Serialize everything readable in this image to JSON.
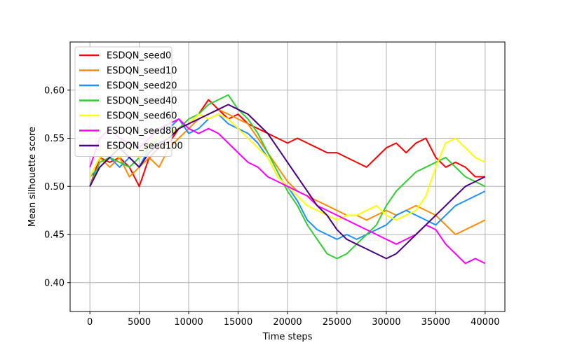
{
  "chart_data": {
    "type": "line",
    "title": "",
    "xlabel": "Time steps",
    "ylabel": "Mean silhouette score",
    "xlim": [
      -2000,
      42000
    ],
    "ylim": [
      0.37,
      0.65
    ],
    "xticks": [
      0,
      5000,
      10000,
      15000,
      20000,
      25000,
      30000,
      35000,
      40000
    ],
    "xtick_labels": [
      "0",
      "5000",
      "10000",
      "15000",
      "20000",
      "25000",
      "30000",
      "35000",
      "40000"
    ],
    "yticks": [
      0.4,
      0.45,
      0.5,
      0.55,
      0.6
    ],
    "ytick_labels": [
      "0.40",
      "0.45",
      "0.50",
      "0.55",
      "0.60"
    ],
    "grid": true,
    "legend_position": "top-left",
    "series": [
      {
        "name": "ESDQN_seed0",
        "color": "#ff0000",
        "points": [
          [
            0,
            0.5
          ],
          [
            1000,
            0.53
          ],
          [
            2000,
            0.525
          ],
          [
            3000,
            0.53
          ],
          [
            4000,
            0.52
          ],
          [
            5000,
            0.5
          ],
          [
            6000,
            0.53
          ],
          [
            7000,
            0.54
          ],
          [
            8000,
            0.545
          ],
          [
            9000,
            0.56
          ],
          [
            10000,
            0.565
          ],
          [
            11000,
            0.575
          ],
          [
            12000,
            0.59
          ],
          [
            13000,
            0.58
          ],
          [
            14000,
            0.57
          ],
          [
            15000,
            0.575
          ],
          [
            16000,
            0.565
          ],
          [
            17000,
            0.56
          ],
          [
            18000,
            0.555
          ],
          [
            19000,
            0.55
          ],
          [
            20000,
            0.545
          ],
          [
            21000,
            0.55
          ],
          [
            22000,
            0.545
          ],
          [
            23000,
            0.54
          ],
          [
            24000,
            0.535
          ],
          [
            25000,
            0.535
          ],
          [
            26000,
            0.53
          ],
          [
            27000,
            0.525
          ],
          [
            28000,
            0.52
          ],
          [
            29000,
            0.53
          ],
          [
            30000,
            0.54
          ],
          [
            31000,
            0.545
          ],
          [
            32000,
            0.535
          ],
          [
            33000,
            0.545
          ],
          [
            34000,
            0.55
          ],
          [
            35000,
            0.53
          ],
          [
            36000,
            0.52
          ],
          [
            37000,
            0.525
          ],
          [
            38000,
            0.52
          ],
          [
            39000,
            0.51
          ],
          [
            40000,
            0.51
          ]
        ]
      },
      {
        "name": "ESDQN_seed10",
        "color": "#ff8c00",
        "points": [
          [
            0,
            0.51
          ],
          [
            1000,
            0.53
          ],
          [
            2000,
            0.52
          ],
          [
            3000,
            0.53
          ],
          [
            4000,
            0.51
          ],
          [
            5000,
            0.52
          ],
          [
            6000,
            0.53
          ],
          [
            7000,
            0.52
          ],
          [
            8000,
            0.54
          ],
          [
            9000,
            0.55
          ],
          [
            10000,
            0.56
          ],
          [
            11000,
            0.57
          ],
          [
            12000,
            0.575
          ],
          [
            13000,
            0.58
          ],
          [
            14000,
            0.575
          ],
          [
            15000,
            0.57
          ],
          [
            16000,
            0.565
          ],
          [
            17000,
            0.55
          ],
          [
            18000,
            0.535
          ],
          [
            19000,
            0.52
          ],
          [
            20000,
            0.505
          ],
          [
            21000,
            0.495
          ],
          [
            22000,
            0.49
          ],
          [
            23000,
            0.485
          ],
          [
            24000,
            0.48
          ],
          [
            25000,
            0.475
          ],
          [
            26000,
            0.47
          ],
          [
            27000,
            0.47
          ],
          [
            28000,
            0.465
          ],
          [
            29000,
            0.47
          ],
          [
            30000,
            0.475
          ],
          [
            31000,
            0.47
          ],
          [
            32000,
            0.475
          ],
          [
            33000,
            0.48
          ],
          [
            34000,
            0.475
          ],
          [
            35000,
            0.47
          ],
          [
            36000,
            0.46
          ],
          [
            37000,
            0.45
          ],
          [
            38000,
            0.455
          ],
          [
            39000,
            0.46
          ],
          [
            40000,
            0.465
          ]
        ]
      },
      {
        "name": "ESDQN_seed20",
        "color": "#1e90ff",
        "points": [
          [
            0,
            0.51
          ],
          [
            1000,
            0.52
          ],
          [
            2000,
            0.53
          ],
          [
            3000,
            0.52
          ],
          [
            4000,
            0.53
          ],
          [
            5000,
            0.52
          ],
          [
            6000,
            0.54
          ],
          [
            7000,
            0.55
          ],
          [
            8000,
            0.56
          ],
          [
            9000,
            0.57
          ],
          [
            10000,
            0.555
          ],
          [
            11000,
            0.56
          ],
          [
            12000,
            0.57
          ],
          [
            13000,
            0.575
          ],
          [
            14000,
            0.565
          ],
          [
            15000,
            0.56
          ],
          [
            16000,
            0.555
          ],
          [
            17000,
            0.545
          ],
          [
            18000,
            0.53
          ],
          [
            19000,
            0.51
          ],
          [
            20000,
            0.5
          ],
          [
            21000,
            0.485
          ],
          [
            22000,
            0.465
          ],
          [
            23000,
            0.455
          ],
          [
            24000,
            0.45
          ],
          [
            25000,
            0.445
          ],
          [
            26000,
            0.45
          ],
          [
            27000,
            0.445
          ],
          [
            28000,
            0.45
          ],
          [
            29000,
            0.455
          ],
          [
            30000,
            0.46
          ],
          [
            31000,
            0.47
          ],
          [
            32000,
            0.475
          ],
          [
            33000,
            0.47
          ],
          [
            34000,
            0.465
          ],
          [
            35000,
            0.46
          ],
          [
            36000,
            0.47
          ],
          [
            37000,
            0.48
          ],
          [
            38000,
            0.485
          ],
          [
            39000,
            0.49
          ],
          [
            40000,
            0.495
          ]
        ]
      },
      {
        "name": "ESDQN_seed40",
        "color": "#32cd32",
        "points": [
          [
            0,
            0.5
          ],
          [
            1000,
            0.525
          ],
          [
            2000,
            0.53
          ],
          [
            3000,
            0.525
          ],
          [
            4000,
            0.52
          ],
          [
            5000,
            0.53
          ],
          [
            6000,
            0.54
          ],
          [
            7000,
            0.55
          ],
          [
            8000,
            0.555
          ],
          [
            9000,
            0.56
          ],
          [
            10000,
            0.57
          ],
          [
            11000,
            0.575
          ],
          [
            12000,
            0.585
          ],
          [
            13000,
            0.59
          ],
          [
            14000,
            0.595
          ],
          [
            15000,
            0.58
          ],
          [
            16000,
            0.57
          ],
          [
            17000,
            0.555
          ],
          [
            18000,
            0.535
          ],
          [
            19000,
            0.515
          ],
          [
            20000,
            0.495
          ],
          [
            21000,
            0.48
          ],
          [
            22000,
            0.46
          ],
          [
            23000,
            0.445
          ],
          [
            24000,
            0.43
          ],
          [
            25000,
            0.425
          ],
          [
            26000,
            0.43
          ],
          [
            27000,
            0.44
          ],
          [
            28000,
            0.45
          ],
          [
            29000,
            0.46
          ],
          [
            30000,
            0.48
          ],
          [
            31000,
            0.495
          ],
          [
            32000,
            0.505
          ],
          [
            33000,
            0.515
          ],
          [
            34000,
            0.52
          ],
          [
            35000,
            0.525
          ],
          [
            36000,
            0.53
          ],
          [
            37000,
            0.52
          ],
          [
            38000,
            0.51
          ],
          [
            39000,
            0.505
          ],
          [
            40000,
            0.5
          ]
        ]
      },
      {
        "name": "ESDQN_seed60",
        "color": "#ffff00",
        "points": [
          [
            0,
            0.51
          ],
          [
            1000,
            0.53
          ],
          [
            2000,
            0.54
          ],
          [
            3000,
            0.53
          ],
          [
            4000,
            0.54
          ],
          [
            5000,
            0.53
          ],
          [
            6000,
            0.545
          ],
          [
            7000,
            0.55
          ],
          [
            8000,
            0.555
          ],
          [
            9000,
            0.56
          ],
          [
            10000,
            0.565
          ],
          [
            11000,
            0.575
          ],
          [
            12000,
            0.57
          ],
          [
            13000,
            0.575
          ],
          [
            14000,
            0.57
          ],
          [
            15000,
            0.56
          ],
          [
            16000,
            0.55
          ],
          [
            17000,
            0.54
          ],
          [
            18000,
            0.53
          ],
          [
            19000,
            0.51
          ],
          [
            20000,
            0.5
          ],
          [
            21000,
            0.49
          ],
          [
            22000,
            0.48
          ],
          [
            23000,
            0.475
          ],
          [
            24000,
            0.47
          ],
          [
            25000,
            0.465
          ],
          [
            26000,
            0.47
          ],
          [
            27000,
            0.47
          ],
          [
            28000,
            0.475
          ],
          [
            29000,
            0.48
          ],
          [
            30000,
            0.47
          ],
          [
            31000,
            0.465
          ],
          [
            32000,
            0.47
          ],
          [
            33000,
            0.475
          ],
          [
            34000,
            0.49
          ],
          [
            35000,
            0.52
          ],
          [
            36000,
            0.545
          ],
          [
            37000,
            0.55
          ],
          [
            38000,
            0.54
          ],
          [
            39000,
            0.53
          ],
          [
            40000,
            0.525
          ]
        ]
      },
      {
        "name": "ESDQN_seed80",
        "color": "#ff00ff",
        "points": [
          [
            0,
            0.52
          ],
          [
            1000,
            0.55
          ],
          [
            2000,
            0.56
          ],
          [
            3000,
            0.55
          ],
          [
            4000,
            0.545
          ],
          [
            5000,
            0.54
          ],
          [
            6000,
            0.55
          ],
          [
            7000,
            0.56
          ],
          [
            8000,
            0.565
          ],
          [
            9000,
            0.57
          ],
          [
            10000,
            0.56
          ],
          [
            11000,
            0.555
          ],
          [
            12000,
            0.56
          ],
          [
            13000,
            0.555
          ],
          [
            14000,
            0.545
          ],
          [
            15000,
            0.535
          ],
          [
            16000,
            0.525
          ],
          [
            17000,
            0.52
          ],
          [
            18000,
            0.51
          ],
          [
            19000,
            0.505
          ],
          [
            20000,
            0.5
          ],
          [
            21000,
            0.495
          ],
          [
            22000,
            0.49
          ],
          [
            23000,
            0.48
          ],
          [
            24000,
            0.475
          ],
          [
            25000,
            0.47
          ],
          [
            26000,
            0.465
          ],
          [
            27000,
            0.46
          ],
          [
            28000,
            0.455
          ],
          [
            29000,
            0.45
          ],
          [
            30000,
            0.445
          ],
          [
            31000,
            0.44
          ],
          [
            32000,
            0.445
          ],
          [
            33000,
            0.45
          ],
          [
            34000,
            0.46
          ],
          [
            35000,
            0.455
          ],
          [
            36000,
            0.44
          ],
          [
            37000,
            0.43
          ],
          [
            38000,
            0.42
          ],
          [
            39000,
            0.425
          ],
          [
            40000,
            0.42
          ]
        ]
      },
      {
        "name": "ESDQN_seed100",
        "color": "#4b0082",
        "points": [
          [
            0,
            0.5
          ],
          [
            1000,
            0.52
          ],
          [
            2000,
            0.53
          ],
          [
            3000,
            0.54
          ],
          [
            4000,
            0.53
          ],
          [
            5000,
            0.52
          ],
          [
            6000,
            0.535
          ],
          [
            7000,
            0.545
          ],
          [
            8000,
            0.55
          ],
          [
            9000,
            0.56
          ],
          [
            10000,
            0.565
          ],
          [
            11000,
            0.57
          ],
          [
            12000,
            0.575
          ],
          [
            13000,
            0.58
          ],
          [
            14000,
            0.585
          ],
          [
            15000,
            0.58
          ],
          [
            16000,
            0.575
          ],
          [
            17000,
            0.565
          ],
          [
            18000,
            0.555
          ],
          [
            19000,
            0.54
          ],
          [
            20000,
            0.525
          ],
          [
            21000,
            0.51
          ],
          [
            22000,
            0.495
          ],
          [
            23000,
            0.48
          ],
          [
            24000,
            0.47
          ],
          [
            25000,
            0.455
          ],
          [
            26000,
            0.445
          ],
          [
            27000,
            0.44
          ],
          [
            28000,
            0.435
          ],
          [
            29000,
            0.43
          ],
          [
            30000,
            0.425
          ],
          [
            31000,
            0.43
          ],
          [
            32000,
            0.44
          ],
          [
            33000,
            0.45
          ],
          [
            34000,
            0.46
          ],
          [
            35000,
            0.47
          ],
          [
            36000,
            0.48
          ],
          [
            37000,
            0.49
          ],
          [
            38000,
            0.5
          ],
          [
            39000,
            0.505
          ],
          [
            40000,
            0.51
          ]
        ]
      }
    ]
  }
}
